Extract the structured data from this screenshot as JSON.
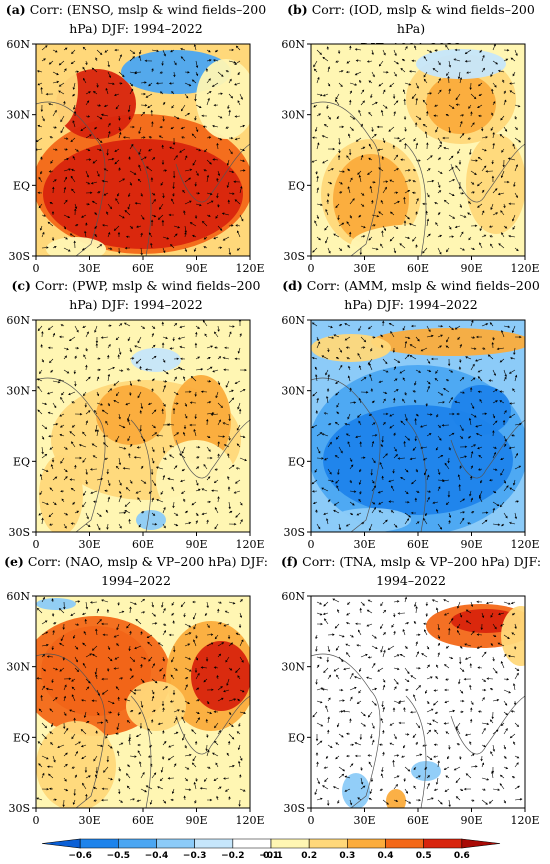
{
  "panels": [
    {
      "id": "a",
      "letter": "(a)",
      "title": "Corr: (ENSO, mslp & wind fields–200 hPa) DJF: 1994–2022",
      "line1": "Corr: (ENSO, mslp & wind fields–200",
      "line2": "hPa) DJF: 1994–2022"
    },
    {
      "id": "b",
      "letter": "(b)",
      "title": "Corr: (IOD, mslp & wind fields–200 hPa) DJF: 1994–2022",
      "line1": "Corr: (IOD, mslp & wind fields–200 hPa)",
      "line2": "DJF: 1994–2022"
    },
    {
      "id": "c",
      "letter": "(c)",
      "title": "Corr: (PWP, mslp & wind fields–200 hPa) DJF: 1994–2022",
      "line1": "Corr: (PWP, mslp & wind fields–200",
      "line2": "hPa) DJF: 1994–2022"
    },
    {
      "id": "d",
      "letter": "(d)",
      "title": "Corr: (AMM, mslp & wind fields–200 hPa) DJF: 1994–2022",
      "line1": "Corr: (AMM, mslp & wind fields–200",
      "line2": "hPa) DJF: 1994–2022"
    },
    {
      "id": "e",
      "letter": "(e)",
      "title": "Corr: (NAO, mslp & VP–200 hPa) DJF: 1994–2022",
      "line1": "Corr: (NAO, mslp & VP–200 hPa) DJF:",
      "line2": "1994–2022"
    },
    {
      "id": "f",
      "letter": "(f)",
      "title": "Corr: (TNA, mslp & VP–200 hPa) DJF: 1994–2022",
      "line1": "Corr: (TNA, mslp & VP–200 hPa) DJF:",
      "line2": "1994–2022"
    }
  ],
  "axes": {
    "x_ticks": [
      "0",
      "30E",
      "60E",
      "90E",
      "120E"
    ],
    "y_ticks": [
      "60N",
      "30N",
      "EQ",
      "30S"
    ]
  },
  "colorbar": {
    "ticks": [
      "−0.6",
      "−0.5",
      "−0.4",
      "−0.3",
      "−0.2",
      "−0.1",
      "0.1",
      "0.2",
      "0.3",
      "0.4",
      "0.5",
      "0.6"
    ],
    "colors": [
      "#0a5fd6",
      "#1d83eb",
      "#4ba6f2",
      "#8ccbf8",
      "#c6e6fb",
      "#ffffff",
      "#fff6b3",
      "#ffd87a",
      "#fbac3c",
      "#f36818",
      "#d8240d",
      "#a80a05"
    ]
  }
}
